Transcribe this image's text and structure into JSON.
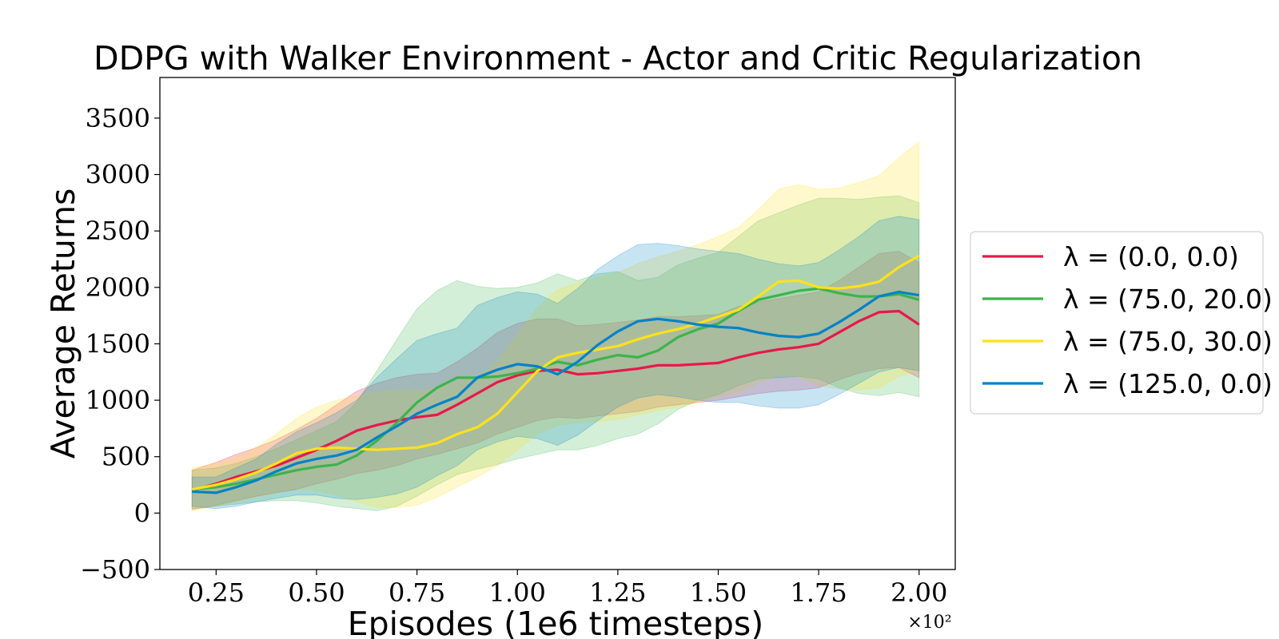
{
  "chart_data": {
    "type": "line",
    "title": "DDPG with Walker Environment - Actor and Critic Regularization",
    "xlabel": "Episodes (1e6 timesteps)",
    "ylabel": "Average Returns",
    "x_multiplier": "×10²",
    "xlim": [
      0.11,
      2.09
    ],
    "ylim": [
      -500,
      3860
    ],
    "xticks": [
      0.25,
      0.5,
      0.75,
      1.0,
      1.25,
      1.5,
      1.75,
      2.0
    ],
    "xtick_labels": [
      "0.25",
      "0.50",
      "0.75",
      "1.00",
      "1.25",
      "1.50",
      "1.75",
      "2.00"
    ],
    "yticks": [
      -500,
      0,
      500,
      1000,
      1500,
      2000,
      2500,
      3000,
      3500
    ],
    "ytick_labels": [
      "−500",
      "0",
      "500",
      "1000",
      "1500",
      "2000",
      "2500",
      "3000",
      "3500"
    ],
    "legend_position": "center-right outside",
    "x": [
      0.19,
      0.25,
      0.3,
      0.35,
      0.4,
      0.45,
      0.5,
      0.55,
      0.6,
      0.65,
      0.7,
      0.75,
      0.8,
      0.85,
      0.9,
      0.95,
      1.0,
      1.05,
      1.1,
      1.15,
      1.2,
      1.25,
      1.3,
      1.35,
      1.4,
      1.45,
      1.5,
      1.55,
      1.6,
      1.65,
      1.7,
      1.75,
      1.8,
      1.85,
      1.9,
      1.95,
      2.0
    ],
    "series": [
      {
        "name": "λ = (0.0, 0.0)",
        "color": "#e6194b",
        "values": [
          200,
          260,
          320,
          370,
          420,
          490,
          560,
          640,
          730,
          780,
          820,
          850,
          870,
          960,
          1060,
          1160,
          1220,
          1260,
          1270,
          1230,
          1240,
          1260,
          1280,
          1310,
          1310,
          1320,
          1330,
          1380,
          1420,
          1450,
          1470,
          1500,
          1600,
          1700,
          1780,
          1790,
          1670
        ],
        "lower": [
          30,
          70,
          110,
          150,
          180,
          210,
          260,
          300,
          350,
          380,
          420,
          480,
          520,
          570,
          620,
          700,
          760,
          820,
          850,
          840,
          860,
          880,
          900,
          940,
          960,
          980,
          1000,
          1030,
          1060,
          1080,
          1090,
          1110,
          1180,
          1240,
          1280,
          1290,
          1200
        ],
        "upper": [
          380,
          450,
          520,
          580,
          650,
          740,
          840,
          960,
          1080,
          1150,
          1200,
          1230,
          1240,
          1340,
          1460,
          1600,
          1680,
          1720,
          1720,
          1660,
          1670,
          1690,
          1710,
          1740,
          1740,
          1750,
          1760,
          1830,
          1870,
          1900,
          1930,
          1960,
          2060,
          2180,
          2300,
          2320,
          2220
        ]
      },
      {
        "name": "λ = (75.0, 20.0)",
        "color": "#3cb44b",
        "values": [
          210,
          230,
          260,
          300,
          340,
          380,
          410,
          430,
          510,
          640,
          800,
          980,
          1110,
          1200,
          1200,
          1210,
          1240,
          1280,
          1340,
          1310,
          1360,
          1400,
          1380,
          1440,
          1560,
          1630,
          1680,
          1790,
          1890,
          1930,
          1970,
          1990,
          1950,
          1920,
          1920,
          1940,
          1890
        ],
        "lower": [
          40,
          60,
          80,
          100,
          110,
          110,
          90,
          60,
          40,
          20,
          60,
          150,
          250,
          340,
          390,
          430,
          480,
          520,
          560,
          560,
          600,
          660,
          700,
          790,
          920,
          1000,
          1050,
          1130,
          1190,
          1200,
          1210,
          1190,
          1110,
          1060,
          1040,
          1070,
          1030
        ],
        "upper": [
          380,
          400,
          440,
          500,
          570,
          650,
          730,
          810,
          980,
          1260,
          1540,
          1810,
          1970,
          2060,
          2010,
          1990,
          2000,
          2040,
          2120,
          2060,
          2120,
          2140,
          2060,
          2090,
          2200,
          2260,
          2310,
          2450,
          2590,
          2660,
          2730,
          2790,
          2790,
          2780,
          2800,
          2810,
          2750
        ]
      },
      {
        "name": "λ = (75.0, 30.0)",
        "color": "#ffe119",
        "values": [
          210,
          250,
          300,
          360,
          440,
          530,
          570,
          580,
          570,
          560,
          570,
          580,
          620,
          700,
          760,
          880,
          1070,
          1260,
          1380,
          1420,
          1450,
          1480,
          1540,
          1590,
          1630,
          1680,
          1740,
          1800,
          1920,
          2050,
          2060,
          2000,
          1990,
          2010,
          2050,
          2180,
          2280
        ],
        "lower": [
          20,
          60,
          100,
          140,
          180,
          220,
          200,
          160,
          100,
          50,
          50,
          70,
          140,
          230,
          320,
          420,
          560,
          700,
          780,
          800,
          810,
          830,
          870,
          910,
          940,
          980,
          1030,
          1070,
          1150,
          1230,
          1210,
          1130,
          1100,
          1090,
          1110,
          1210,
          1270
        ],
        "upper": [
          400,
          440,
          500,
          580,
          700,
          840,
          940,
          1000,
          1040,
          1070,
          1090,
          1090,
          1100,
          1170,
          1200,
          1340,
          1580,
          1820,
          1980,
          2040,
          2090,
          2130,
          2210,
          2270,
          2320,
          2380,
          2450,
          2530,
          2690,
          2870,
          2910,
          2870,
          2880,
          2930,
          2990,
          3150,
          3290
        ]
      },
      {
        "name": "λ = (125.0, 0.0)",
        "color": "#0082c8",
        "values": [
          190,
          180,
          230,
          290,
          370,
          440,
          480,
          510,
          560,
          670,
          770,
          880,
          960,
          1030,
          1200,
          1270,
          1320,
          1300,
          1230,
          1340,
          1490,
          1610,
          1700,
          1720,
          1700,
          1670,
          1650,
          1640,
          1600,
          1570,
          1560,
          1590,
          1690,
          1800,
          1920,
          1960,
          1930
        ],
        "lower": [
          60,
          40,
          60,
          100,
          130,
          160,
          160,
          130,
          120,
          140,
          170,
          230,
          330,
          420,
          560,
          630,
          680,
          660,
          600,
          690,
          820,
          940,
          1020,
          1050,
          1030,
          1000,
          980,
          980,
          950,
          930,
          930,
          960,
          1050,
          1150,
          1250,
          1290,
          1260
        ],
        "upper": [
          320,
          320,
          400,
          480,
          610,
          720,
          800,
          890,
          1000,
          1200,
          1370,
          1530,
          1590,
          1640,
          1840,
          1910,
          1960,
          1940,
          1860,
          1990,
          2160,
          2280,
          2380,
          2390,
          2370,
          2340,
          2320,
          2300,
          2250,
          2210,
          2190,
          2220,
          2330,
          2450,
          2590,
          2630,
          2600
        ]
      }
    ]
  }
}
